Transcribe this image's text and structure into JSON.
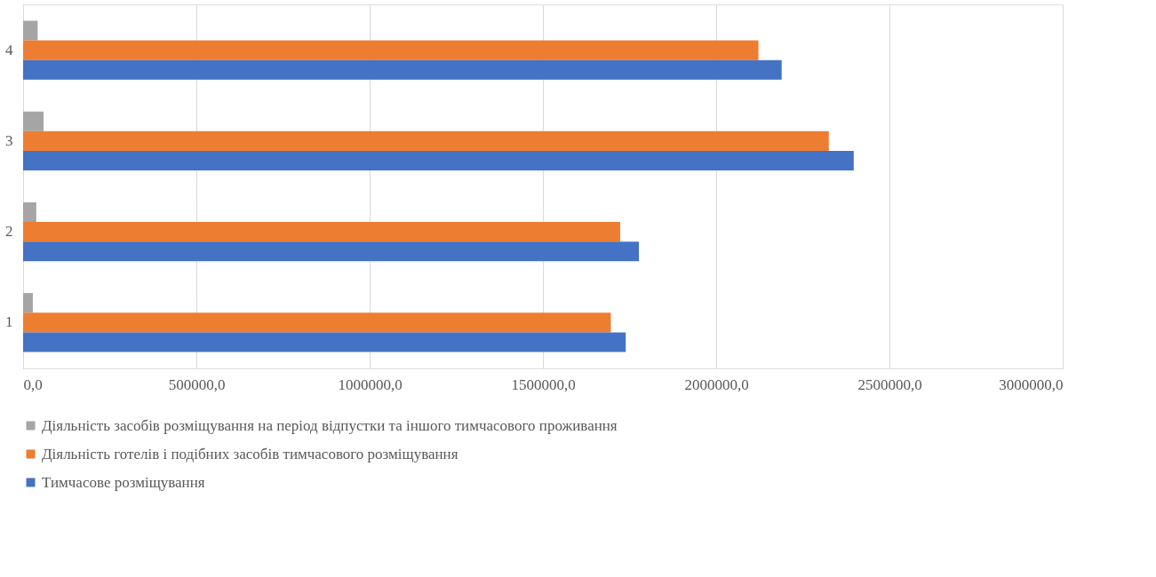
{
  "chart_data": {
    "type": "bar",
    "orientation": "horizontal",
    "categories": [
      "4",
      "3",
      "2",
      "1"
    ],
    "series": [
      {
        "name": "Діяльність засобів розміщування на період відпустки та іншого тимчасового проживання",
        "color": "#a5a5a5",
        "values": [
          42000,
          59000,
          38000,
          28000
        ]
      },
      {
        "name": "Діяльність готелів і подібних засобів тимчасового розміщування",
        "color": "#ed7d31",
        "values": [
          2122000,
          2325000,
          1723000,
          1696000
        ]
      },
      {
        "name": "Тимчасове розміщування",
        "color": "#4472c4",
        "values": [
          2189000,
          2397000,
          1777000,
          1739000
        ]
      }
    ],
    "xlim": [
      0,
      3000000
    ],
    "xticks": [
      {
        "value": 0,
        "label": "0,0"
      },
      {
        "value": 500000,
        "label": "500000,0"
      },
      {
        "value": 1000000,
        "label": "1000000,0"
      },
      {
        "value": 1500000,
        "label": "1500000,0"
      },
      {
        "value": 2000000,
        "label": "2000000,0"
      },
      {
        "value": 2500000,
        "label": "2500000,0"
      },
      {
        "value": 3000000,
        "label": "3000000,0"
      }
    ],
    "grid": "x",
    "legend": "bottom"
  }
}
